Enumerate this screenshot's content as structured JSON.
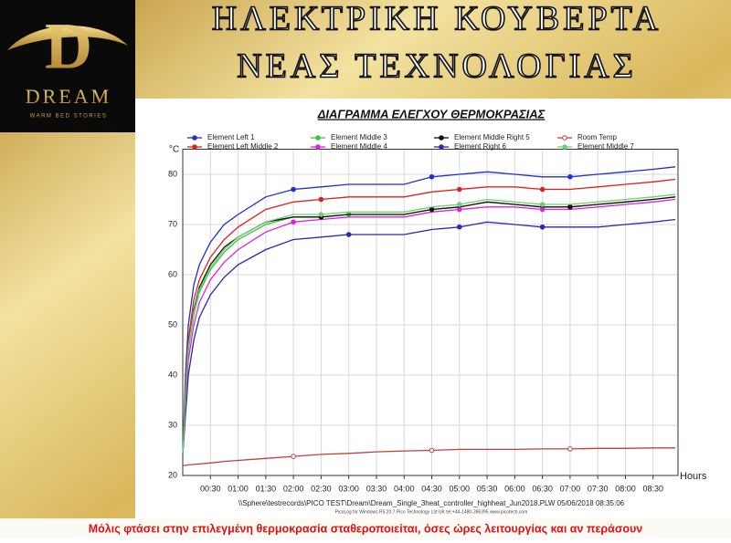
{
  "header": {
    "title_lines": [
      "ΗΛΕΚΤΡΙΚΗ ΚΟΥΒΕΡΤΑ",
      "ΝΕΑΣ ΤΕΧΝΟΛΟΓΙΑΣ"
    ]
  },
  "logo": {
    "brand": "DREAM",
    "tagline": "WARM BED STORIES"
  },
  "caption": "Μόλις φτάσει στην επιλεγμένη θερμοκρασία σταθεροποιείται, όσες ώρες λειτουργίας και αν περάσουν",
  "chart_data": {
    "type": "line",
    "title": "ΔΙΑΓΡΑΜΜΑ ΕΛΕΓΧΟΥ ΘΕΡΜΟΚΡΑΣΙΑΣ",
    "y_label": "°C",
    "x_label": "Hours",
    "file_note": "\\\\Sphere\\testrecords\\PICO TEST\\Dream\\Dream_Single_3heat_controller_highheat_Jun2018.PLW   05/06/2018   08:35:06",
    "software_note": "PicoLog for Windows R5.20.7   Pico Technology Ltd UK   tel:+44-1480-396395   www.picotech.com",
    "x": [
      0,
      0.05,
      0.1,
      0.2,
      0.3,
      0.5,
      0.75,
      1,
      1.5,
      2,
      2.5,
      3,
      3.5,
      4,
      4.5,
      5,
      5.5,
      6,
      6.5,
      7,
      7.5,
      8,
      8.5,
      8.9
    ],
    "xlim": [
      0,
      8.95
    ],
    "xticks": [
      {
        "value": 0.5,
        "label": "00:30"
      },
      {
        "value": 1,
        "label": "01:00"
      },
      {
        "value": 1.5,
        "label": "01:30"
      },
      {
        "value": 2,
        "label": "02:00"
      },
      {
        "value": 2.5,
        "label": "02:30"
      },
      {
        "value": 3,
        "label": "03:00"
      },
      {
        "value": 3.5,
        "label": "03:30"
      },
      {
        "value": 4,
        "label": "04:00"
      },
      {
        "value": 4.5,
        "label": "04:30"
      },
      {
        "value": 5,
        "label": "05:00"
      },
      {
        "value": 5.5,
        "label": "05:30"
      },
      {
        "value": 6,
        "label": "06:00"
      },
      {
        "value": 6.5,
        "label": "06:30"
      },
      {
        "value": 7,
        "label": "07:00"
      },
      {
        "value": 7.5,
        "label": "07:30"
      },
      {
        "value": 8,
        "label": "08:00"
      },
      {
        "value": 8.5,
        "label": "08:30"
      }
    ],
    "ylim": [
      20,
      85
    ],
    "yticks": [
      20,
      30,
      40,
      50,
      60,
      70,
      80
    ],
    "grid": true,
    "series": [
      {
        "name": "Element Left 1",
        "color": "#1f2fd0",
        "values": [
          24,
          40,
          50,
          58,
          62,
          66.5,
          70,
          72,
          75.5,
          77,
          77.5,
          78,
          78,
          78,
          79.5,
          80,
          80.5,
          80,
          79.5,
          79.5,
          80,
          80.5,
          81,
          81.5
        ]
      },
      {
        "name": "Element Left Middle 2",
        "color": "#e02020",
        "values": [
          24,
          38,
          47,
          55,
          59,
          63.5,
          67,
          69.5,
          73,
          74.5,
          75,
          75.5,
          75.5,
          75.5,
          76.5,
          77,
          77.5,
          77.5,
          77,
          77,
          77.5,
          78,
          78.5,
          79
        ]
      },
      {
        "name": "Element Middle 3",
        "color": "#40c040",
        "values": [
          24,
          36,
          45,
          52,
          56.5,
          61,
          64.5,
          67,
          70,
          71.5,
          71.5,
          72,
          72,
          72,
          73,
          73.5,
          74.5,
          74,
          73.5,
          73.5,
          74,
          74.5,
          75,
          75.5
        ]
      },
      {
        "name": "Element Middle 4",
        "color": "#e020e0",
        "values": [
          24,
          34,
          43,
          50,
          54.5,
          59,
          62.5,
          65,
          68.5,
          70.5,
          71,
          71.5,
          71.5,
          71.5,
          72.5,
          73,
          73.5,
          73.5,
          73,
          73,
          73.5,
          74,
          74.5,
          75
        ]
      },
      {
        "name": "Element Middle Right 5",
        "color": "#111111",
        "values": [
          24,
          36.5,
          45.5,
          53,
          57.5,
          62,
          65.5,
          67.5,
          70.5,
          71.5,
          71.5,
          72,
          72,
          72,
          73,
          73.5,
          74.5,
          74,
          73.5,
          73.5,
          74,
          74.5,
          75,
          75.5
        ]
      },
      {
        "name": "Element Right 6",
        "color": "#2a2ab0",
        "values": [
          24,
          32,
          40,
          47,
          51.5,
          56,
          59.5,
          62,
          65,
          67,
          67.5,
          68,
          68,
          68,
          69,
          69.5,
          70.5,
          70,
          69.5,
          69.5,
          69.5,
          70,
          70.5,
          71
        ]
      },
      {
        "name": "Room Temp",
        "color": "#c04040",
        "values": [
          22,
          22,
          22.1,
          22.2,
          22.3,
          22.5,
          22.8,
          23,
          23.4,
          23.8,
          24.2,
          24.4,
          24.7,
          24.9,
          25,
          25.2,
          25.2,
          25.2,
          25.3,
          25.3,
          25.4,
          25.4,
          25.5,
          25.5
        ]
      },
      {
        "name": "Element Middle 7",
        "color": "#70d070",
        "values": [
          24,
          36,
          45.5,
          52.5,
          57,
          61.5,
          65,
          67.5,
          70.5,
          72,
          72,
          72.5,
          72.5,
          72.5,
          73.5,
          74,
          75,
          74.5,
          74,
          74,
          74.5,
          75,
          75.5,
          76
        ]
      }
    ]
  }
}
